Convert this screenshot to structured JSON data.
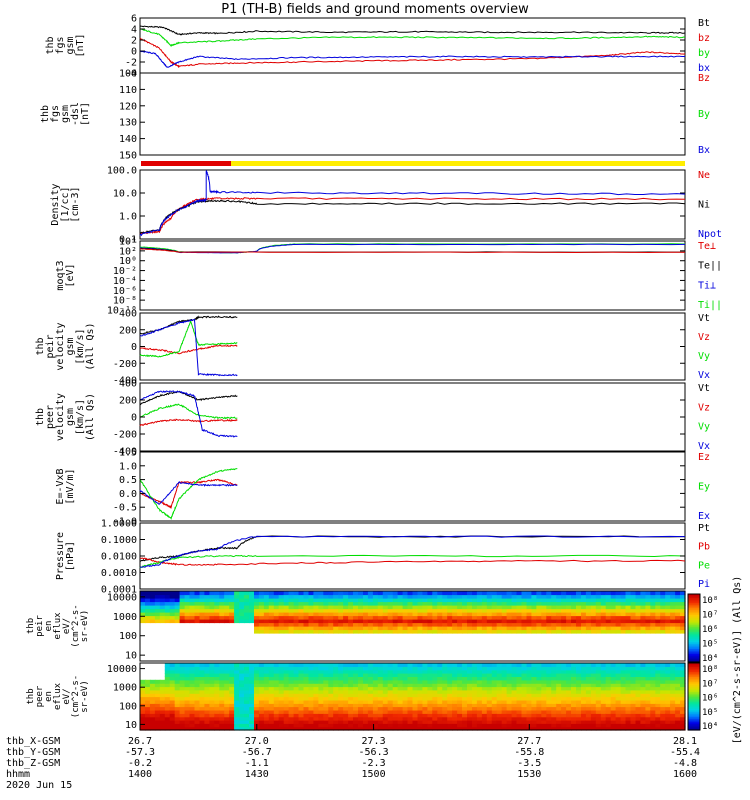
{
  "title": "P1 (TH-B) fields and ground moments overview",
  "colors": {
    "black": "#000000",
    "red": "#e00000",
    "green": "#00dd00",
    "blue": "#0000dd",
    "yellow": "#ffee00",
    "cyan": "#00e0e0"
  },
  "chart_data": [
    {
      "id": "fgs",
      "type": "line",
      "ylabel": [
        "thb",
        "fgs",
        "gsm",
        "[nT]"
      ],
      "ylim": [
        -4,
        6
      ],
      "yticks": [
        "6",
        "4",
        "2",
        "0",
        "-2",
        "-4"
      ],
      "legend": [
        "Bt",
        "bz",
        "by",
        "bx"
      ],
      "series": [
        {
          "name": "Bt",
          "color": "black",
          "x": [
            26.7,
            26.76,
            26.8,
            26.85,
            26.9,
            27.0,
            27.2,
            27.4,
            27.6,
            27.8,
            28.0,
            28.1
          ],
          "y": [
            4.5,
            4.3,
            3.0,
            3.3,
            3.2,
            3.6,
            3.4,
            3.5,
            3.4,
            3.4,
            3.3,
            3.3
          ]
        },
        {
          "name": "bz",
          "color": "red",
          "x": [
            26.7,
            26.75,
            26.78,
            26.8,
            26.85,
            26.95,
            27.1,
            27.3,
            27.5,
            27.7,
            27.9,
            28.0,
            28.1
          ],
          "y": [
            2.3,
            0.5,
            -2.0,
            -2.8,
            -2.4,
            -2.2,
            -2.0,
            -1.8,
            -1.6,
            -1.4,
            -0.8,
            -0.2,
            -0.5
          ]
        },
        {
          "name": "by",
          "color": "green",
          "x": [
            26.7,
            26.75,
            26.78,
            26.8,
            26.9,
            27.0,
            27.2,
            27.4,
            27.6,
            27.8,
            28.0,
            28.1
          ],
          "y": [
            4.0,
            3.0,
            1.0,
            1.5,
            1.8,
            2.2,
            2.5,
            2.5,
            2.4,
            2.3,
            2.6,
            2.5
          ]
        },
        {
          "name": "bx",
          "color": "blue",
          "x": [
            26.7,
            26.74,
            26.77,
            26.8,
            26.85,
            26.95,
            27.1,
            27.3,
            27.5,
            27.7,
            27.9,
            28.1
          ],
          "y": [
            0.0,
            -0.5,
            -3.0,
            -2.0,
            -1.0,
            -1.5,
            -1.2,
            -1.1,
            -1.0,
            -1.1,
            -1.0,
            -1.0
          ]
        }
      ]
    },
    {
      "id": "fgs-dsl",
      "type": "line",
      "ylabel": [
        "thb",
        "fgs",
        "gsm",
        "-dsl",
        "[nT]"
      ],
      "ylim": [
        100,
        155
      ],
      "yticks": [
        "100",
        "110",
        "120",
        "130",
        "140",
        "150"
      ],
      "legend": [
        "Bz",
        "By",
        "Bx"
      ],
      "series": []
    },
    {
      "id": "density",
      "type": "line",
      "ylabel": [
        "Density",
        "[1/cc]",
        "[cm-3]"
      ],
      "scale": "log",
      "ylim": [
        0.05,
        200
      ],
      "yticks": [
        "100.0",
        "10.0",
        "1.0",
        "0.1"
      ],
      "legend": [
        "Ne",
        "Ni",
        "Npot"
      ],
      "series": [
        {
          "name": "Ne",
          "color": "red",
          "x": [
            26.7,
            26.75,
            26.78,
            26.82,
            26.85,
            26.9,
            27.0,
            27.5,
            28.1
          ],
          "y": [
            0.1,
            0.12,
            0.6,
            3.0,
            6.0,
            6.5,
            6.5,
            6.3,
            6.0
          ]
        },
        {
          "name": "Ni",
          "color": "black",
          "x": [
            26.7,
            26.75,
            26.78,
            26.82,
            26.85,
            26.9,
            26.95,
            27.0,
            27.5,
            28.1
          ],
          "y": [
            0.1,
            0.15,
            1.0,
            2.5,
            4.5,
            5.0,
            4.5,
            3.5,
            3.5,
            3.5
          ]
        },
        {
          "name": "Npot",
          "color": "blue",
          "x": [
            26.7,
            26.75,
            26.78,
            26.82,
            26.85,
            26.87,
            26.87,
            26.88,
            26.9,
            27.0,
            27.5,
            28.1
          ],
          "y": [
            0.08,
            0.15,
            0.9,
            2.5,
            5.0,
            5.5,
            180,
            15,
            14,
            13,
            12,
            11
          ]
        }
      ]
    },
    {
      "id": "temperature",
      "type": "line",
      "ylabel": [
        "moqt3",
        "[eV]"
      ],
      "scale": "log",
      "ylim": [
        1e-10,
        10000
      ],
      "yticks": [
        "10⁴",
        "10²",
        "10⁰",
        "10⁻²",
        "10⁻⁴",
        "10⁻⁶",
        "10⁻⁸",
        "10⁻¹⁰"
      ],
      "legend": [
        "Te⊥",
        "Te||",
        "Ti⊥",
        "Ti||"
      ],
      "series": [
        {
          "name": "Ti||",
          "color": "green",
          "x": [
            26.7,
            26.8,
            26.95,
            27.0,
            27.1,
            28.1
          ],
          "y": [
            600,
            60,
            40,
            80,
            2500,
            2500
          ]
        },
        {
          "name": "Ti⊥",
          "color": "blue",
          "x": [
            26.7,
            26.8,
            26.95,
            27.0,
            27.1,
            28.1
          ],
          "y": [
            400,
            50,
            40,
            80,
            2000,
            2000
          ]
        },
        {
          "name": "Te||",
          "color": "black",
          "x": [
            26.7,
            26.8,
            28.1
          ],
          "y": [
            300,
            60,
            55
          ]
        },
        {
          "name": "Te⊥",
          "color": "red",
          "x": [
            26.7,
            26.8,
            28.1
          ],
          "y": [
            250,
            55,
            50
          ]
        }
      ]
    },
    {
      "id": "peir-vel",
      "type": "line",
      "ylabel": [
        "thb",
        "peir",
        "velocity",
        "gsm",
        "[km/s]",
        "(All Qs)"
      ],
      "ylim": [
        -400,
        400
      ],
      "yticks": [
        "400",
        "200",
        "0",
        "-200",
        "-400"
      ],
      "legend": [
        "Vt",
        "Vz",
        "Vy",
        "Vx"
      ],
      "series": [
        {
          "name": "Vt",
          "color": "black",
          "x": [
            26.7,
            26.75,
            26.8,
            26.84,
            26.85,
            26.9,
            26.95
          ],
          "y": [
            150,
            200,
            300,
            320,
            350,
            355,
            350
          ]
        },
        {
          "name": "Vz",
          "color": "red",
          "x": [
            26.7,
            26.75,
            26.8,
            26.85,
            26.9,
            26.95
          ],
          "y": [
            -20,
            -40,
            -80,
            -30,
            10,
            10
          ]
        },
        {
          "name": "Vy",
          "color": "green",
          "x": [
            26.7,
            26.75,
            26.8,
            26.83,
            26.85,
            26.9,
            26.95
          ],
          "y": [
            -100,
            -120,
            -60,
            300,
            20,
            30,
            40
          ]
        },
        {
          "name": "Vx",
          "color": "blue",
          "x": [
            26.7,
            26.75,
            26.8,
            26.84,
            26.85,
            26.9,
            26.95
          ],
          "y": [
            120,
            200,
            280,
            320,
            -330,
            -340,
            -340
          ]
        }
      ]
    },
    {
      "id": "peer-vel",
      "type": "line",
      "ylabel": [
        "thb",
        "peer",
        "velocity",
        "gsm",
        "[km/s]",
        "(All Qs)"
      ],
      "ylim": [
        -400,
        400
      ],
      "yticks": [
        "400",
        "200",
        "0",
        "-200",
        "-400"
      ],
      "legend": [
        "Vt",
        "Vz",
        "Vy",
        "Vx"
      ],
      "series": [
        {
          "name": "Vt",
          "color": "black",
          "x": [
            26.7,
            26.75,
            26.8,
            26.85,
            26.9,
            26.95
          ],
          "y": [
            150,
            250,
            300,
            200,
            230,
            250
          ]
        },
        {
          "name": "Vz",
          "color": "red",
          "x": [
            26.7,
            26.75,
            26.8,
            26.85,
            26.9,
            26.95
          ],
          "y": [
            -100,
            -50,
            -30,
            -50,
            -40,
            -40
          ]
        },
        {
          "name": "Vy",
          "color": "green",
          "x": [
            26.7,
            26.75,
            26.8,
            26.85,
            26.9,
            26.95
          ],
          "y": [
            0,
            100,
            150,
            20,
            -10,
            -10
          ]
        },
        {
          "name": "Vx",
          "color": "blue",
          "x": [
            26.7,
            26.75,
            26.8,
            26.84,
            26.86,
            26.9,
            26.95
          ],
          "y": [
            200,
            300,
            300,
            250,
            -150,
            -220,
            -230
          ]
        }
      ]
    },
    {
      "id": "efield",
      "type": "line",
      "ylabel": [
        "E=-VxB",
        "[mV/m]"
      ],
      "ylim": [
        -1,
        1.5
      ],
      "yticks": [
        "1.5",
        "1.0",
        "0.5",
        "0.0",
        "-0.5",
        "-1.0"
      ],
      "legend": [
        "Ez",
        "Ey",
        "Ex"
      ],
      "series": [
        {
          "name": "Ez",
          "color": "red",
          "x": [
            26.7,
            26.75,
            26.78,
            26.8,
            26.85,
            26.9,
            26.95
          ],
          "y": [
            0,
            -0.3,
            -0.5,
            0.4,
            0.4,
            0.5,
            0.3
          ]
        },
        {
          "name": "Ey",
          "color": "green",
          "x": [
            26.7,
            26.75,
            26.78,
            26.8,
            26.85,
            26.9,
            26.95
          ],
          "y": [
            0.5,
            -0.6,
            -0.9,
            -0.2,
            0.5,
            0.8,
            0.9
          ]
        },
        {
          "name": "Ex",
          "color": "blue",
          "x": [
            26.7,
            26.75,
            26.8,
            26.85,
            26.9,
            26.95
          ],
          "y": [
            0.1,
            -0.4,
            0.4,
            0.3,
            0.3,
            0.3
          ]
        }
      ]
    },
    {
      "id": "pressure",
      "type": "line",
      "ylabel": [
        "Pressure",
        "[nPa]"
      ],
      "scale": "log",
      "ylim": [
        0.0001,
        1
      ],
      "yticks": [
        "1.0000",
        "0.1000",
        "0.0100",
        "0.0010",
        "0.0001"
      ],
      "legend": [
        "Pt",
        "Pb",
        "Pe",
        "Pi"
      ],
      "series": [
        {
          "name": "Pt",
          "color": "black",
          "x": [
            26.7,
            26.75,
            26.8,
            26.85,
            26.9,
            26.95,
            27.0,
            28.1
          ],
          "y": [
            0.005,
            0.008,
            0.01,
            0.02,
            0.03,
            0.03,
            0.15,
            0.15
          ]
        },
        {
          "name": "Pb",
          "color": "red",
          "x": [
            26.7,
            26.75,
            26.8,
            26.9,
            27.2,
            27.6,
            28.1
          ],
          "y": [
            0.008,
            0.004,
            0.003,
            0.003,
            0.004,
            0.005,
            0.005
          ]
        },
        {
          "name": "Pe",
          "color": "green",
          "x": [
            26.7,
            26.75,
            26.8,
            26.9,
            27.0,
            28.1
          ],
          "y": [
            0.002,
            0.004,
            0.008,
            0.01,
            0.01,
            0.01
          ]
        },
        {
          "name": "Pi",
          "color": "blue",
          "x": [
            26.7,
            26.75,
            26.8,
            26.85,
            26.9,
            27.0,
            28.1
          ],
          "y": [
            0.002,
            0.003,
            0.01,
            0.02,
            0.025,
            0.15,
            0.15
          ]
        }
      ]
    },
    {
      "id": "peir-spec",
      "type": "heatmap",
      "ylabel": [
        "thb",
        "peir",
        "en",
        "eflux",
        "eV/",
        "(cm^2-s-",
        "sr-eV)"
      ],
      "scale": "log",
      "ylim": [
        5,
        20000
      ],
      "yticks": [
        "10000",
        "1000",
        "100",
        "10"
      ]
    },
    {
      "id": "peer-spec",
      "type": "heatmap",
      "ylabel": [
        "thb",
        "peer",
        "en",
        "eflux",
        "eV/",
        "(cm^2-s-",
        "sr-eV)"
      ],
      "scale": "log",
      "ylim": [
        5,
        20000
      ],
      "yticks": [
        "10000",
        "1000",
        "100",
        "10"
      ]
    }
  ],
  "colorbar": {
    "ticks": [
      "10⁸",
      "10⁷",
      "10⁶",
      "10⁵",
      "10⁴"
    ],
    "label": "[eV/(cm^2-s-sr-eV)] (All Qs)"
  },
  "xaxis": {
    "range": [
      26.7,
      28.1
    ],
    "tick_x": [
      26.7,
      27.0,
      27.3,
      27.7,
      28.1
    ],
    "rows": [
      {
        "label": "thb_X-GSM",
        "values": [
          "26.7",
          "27.0",
          "27.3",
          "27.7",
          "28.1"
        ]
      },
      {
        "label": "thb_Y-GSM",
        "values": [
          "-57.3",
          "-56.7",
          "-56.3",
          "-55.8",
          "-55.4"
        ]
      },
      {
        "label": "thb_Z-GSM",
        "values": [
          "-0.2",
          "-1.1",
          "-2.3",
          "-3.5",
          "-4.8"
        ]
      },
      {
        "label": "hhmm",
        "values": [
          "1400",
          "1430",
          "1500",
          "1530",
          "1600"
        ]
      }
    ],
    "date": "2020 Jun 15"
  }
}
